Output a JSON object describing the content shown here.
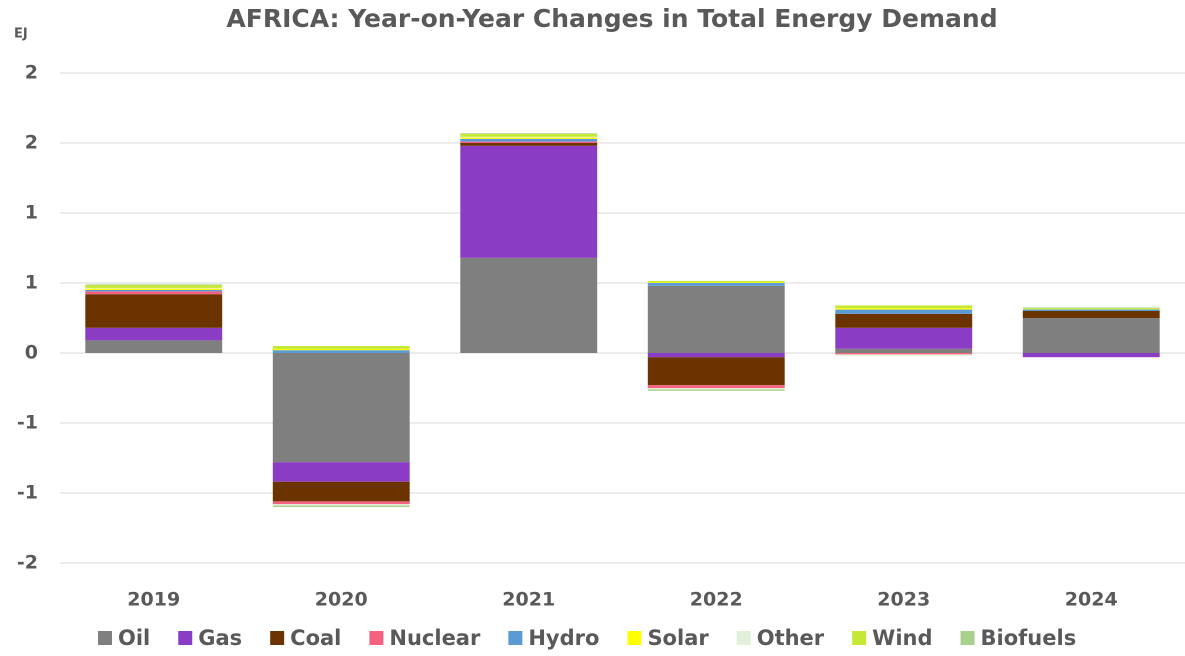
{
  "chart_data": {
    "type": "stacked_bar",
    "title": "AFRICA: Year-on-Year Changes in Total Energy Demand",
    "y_label": "EJ",
    "categories": [
      "2019",
      "2020",
      "2021",
      "2022",
      "2023",
      "2024"
    ],
    "ylim": [
      -1.5,
      2.0
    ],
    "yticks": [
      {
        "value": -1.5,
        "label": "-2"
      },
      {
        "value": -1.0,
        "label": "-1"
      },
      {
        "value": -0.5,
        "label": "-1"
      },
      0,
      {
        "value": 0.5,
        "label": "1"
      },
      1,
      {
        "value": 1.5,
        "label": "2"
      },
      2
    ],
    "grid": true,
    "legend": "bottom",
    "series": [
      {
        "name": "Oil",
        "color": "#7f7f7f",
        "values": [
          0.09,
          -0.78,
          0.68,
          0.48,
          0.03,
          0.25
        ]
      },
      {
        "name": "Gas",
        "color": "#8a3cc4",
        "values": [
          0.09,
          -0.14,
          0.8,
          -0.03,
          0.15,
          -0.03
        ]
      },
      {
        "name": "Coal",
        "color": "#6b3300",
        "values": [
          0.24,
          -0.14,
          0.02,
          -0.2,
          0.1,
          0.05
        ]
      },
      {
        "name": "Nuclear",
        "color": "#f4627f",
        "values": [
          0.02,
          -0.02,
          0.01,
          -0.02,
          -0.01,
          0
        ]
      },
      {
        "name": "Hydro",
        "color": "#5b9bd5",
        "values": [
          0.01,
          0.02,
          0.02,
          0.02,
          0.03,
          0.01
        ]
      },
      {
        "name": "Solar",
        "color": "#ffff00",
        "values": [
          0.01,
          0.01,
          0.01,
          0.005,
          0.01,
          0
        ]
      },
      {
        "name": "Other",
        "color": "#e2efda",
        "values": [
          0.005,
          -0.01,
          0.005,
          -0.01,
          -0.01,
          0
        ]
      },
      {
        "name": "Wind",
        "color": "#c5e836",
        "values": [
          0.02,
          0.02,
          0.02,
          0.01,
          0.02,
          0.01
        ]
      },
      {
        "name": "Biofuels",
        "color": "#a9d18e",
        "values": [
          0.005,
          -0.01,
          0.005,
          -0.01,
          0,
          0.005
        ]
      }
    ]
  }
}
